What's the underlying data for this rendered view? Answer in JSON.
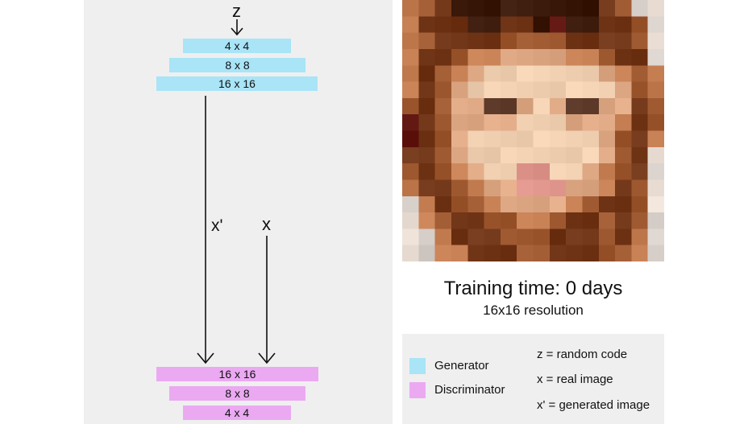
{
  "diagram": {
    "z_label": "z",
    "x_prime_label": "x'",
    "x_label": "x",
    "generator_layers": [
      "4 x 4",
      "8 x 8",
      "16 x 16"
    ],
    "discriminator_layers": [
      "16 x 16",
      "8 x 8",
      "4 x 4"
    ]
  },
  "sample": {
    "training_time": "Training time: 0 days",
    "resolution": "16x16 resolution"
  },
  "legend": {
    "generator": "Generator",
    "discriminator": "Discriminator",
    "notes": [
      "z = random code",
      "x = real image",
      "x' = generated image"
    ]
  },
  "colors": {
    "generator": "#a9e4f7",
    "discriminator": "#eba9f2",
    "panel": "#efefef"
  }
}
